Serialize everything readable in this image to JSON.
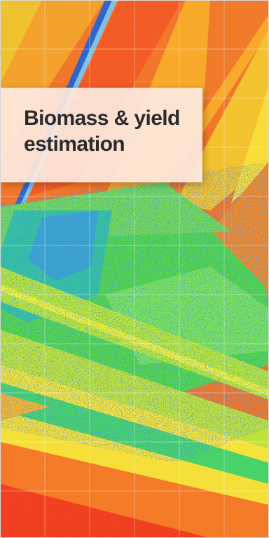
{
  "title": {
    "line1": "Biomass & yield",
    "line2": "estimation"
  }
}
